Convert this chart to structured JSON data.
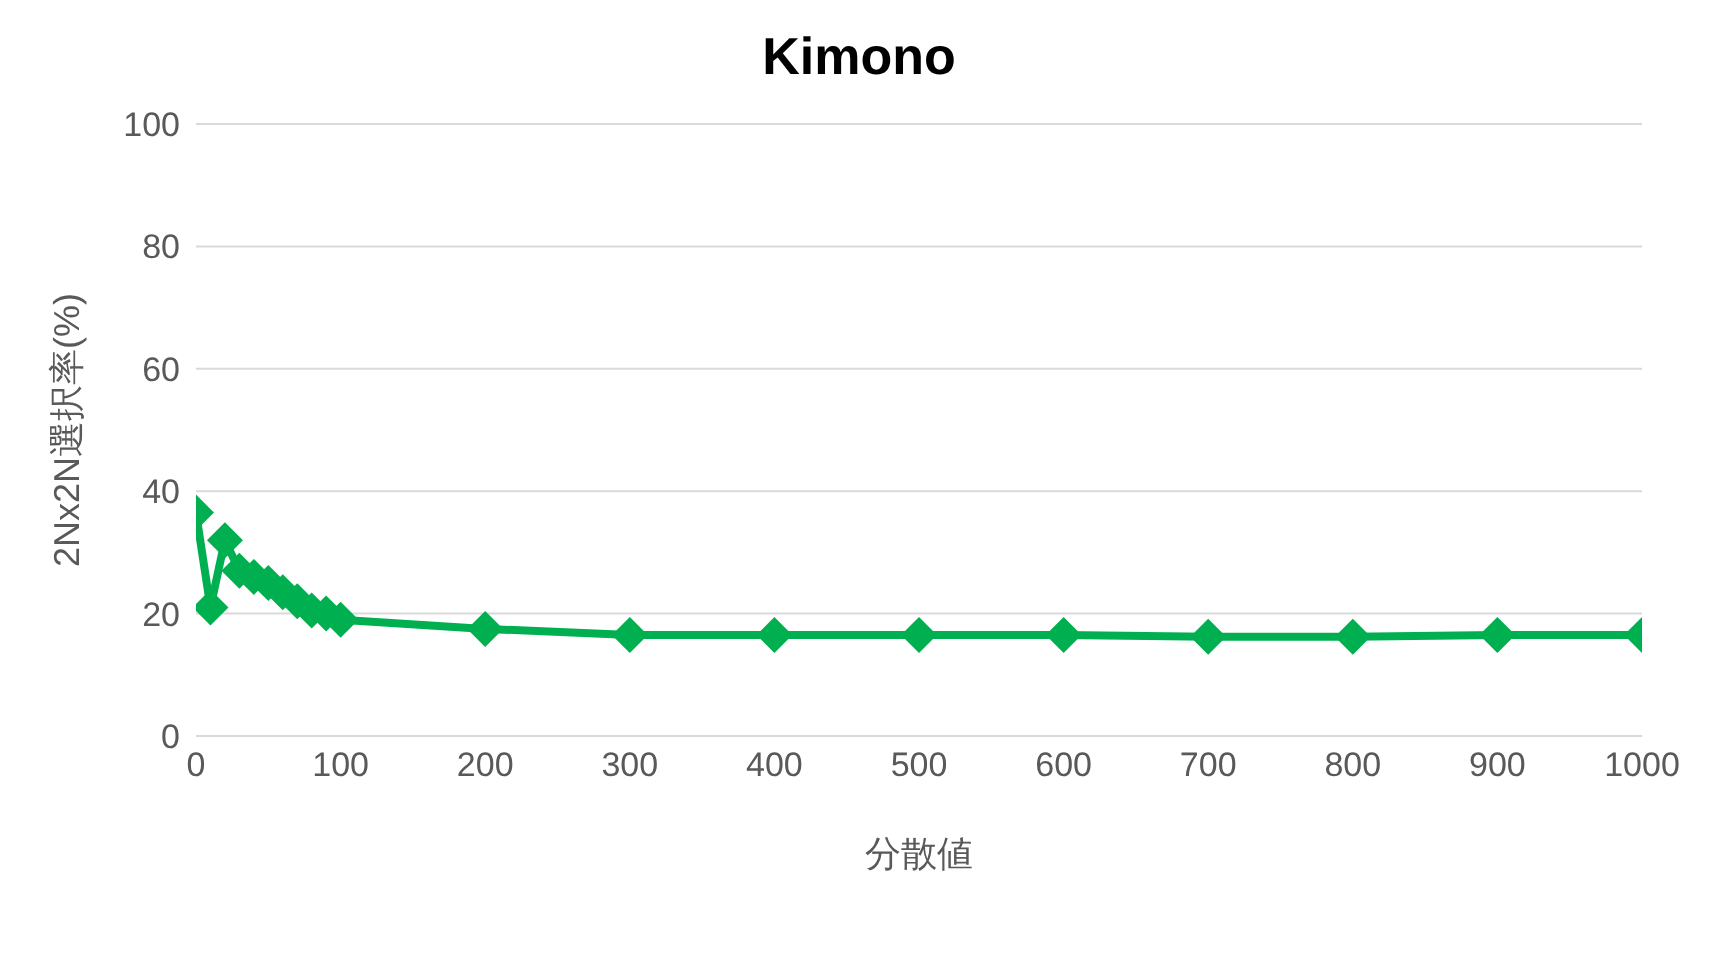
{
  "chart_data": {
    "type": "line",
    "title": "Kimono",
    "xlabel": "分散値",
    "ylabel": "2Nx2N選択率(%)",
    "x": [
      0,
      10,
      20,
      30,
      40,
      50,
      60,
      70,
      80,
      90,
      100,
      200,
      300,
      400,
      500,
      600,
      700,
      800,
      900,
      1000
    ],
    "series": [
      {
        "color": "#00b050",
        "values": [
          36.5,
          21,
          32,
          27,
          26,
          25,
          23.5,
          22,
          20.5,
          20,
          19,
          17.5,
          16.5,
          16.5,
          16.5,
          16.5,
          16.2,
          16.2,
          16.5,
          16.5
        ]
      }
    ],
    "xlim": [
      0,
      1000
    ],
    "xticks": [
      0,
      100,
      200,
      300,
      400,
      500,
      600,
      700,
      800,
      900,
      1000
    ],
    "ylim": [
      0,
      100
    ],
    "yticks": [
      0,
      20,
      40,
      60,
      80,
      100
    ],
    "grid": "y",
    "marker": "diamond"
  }
}
